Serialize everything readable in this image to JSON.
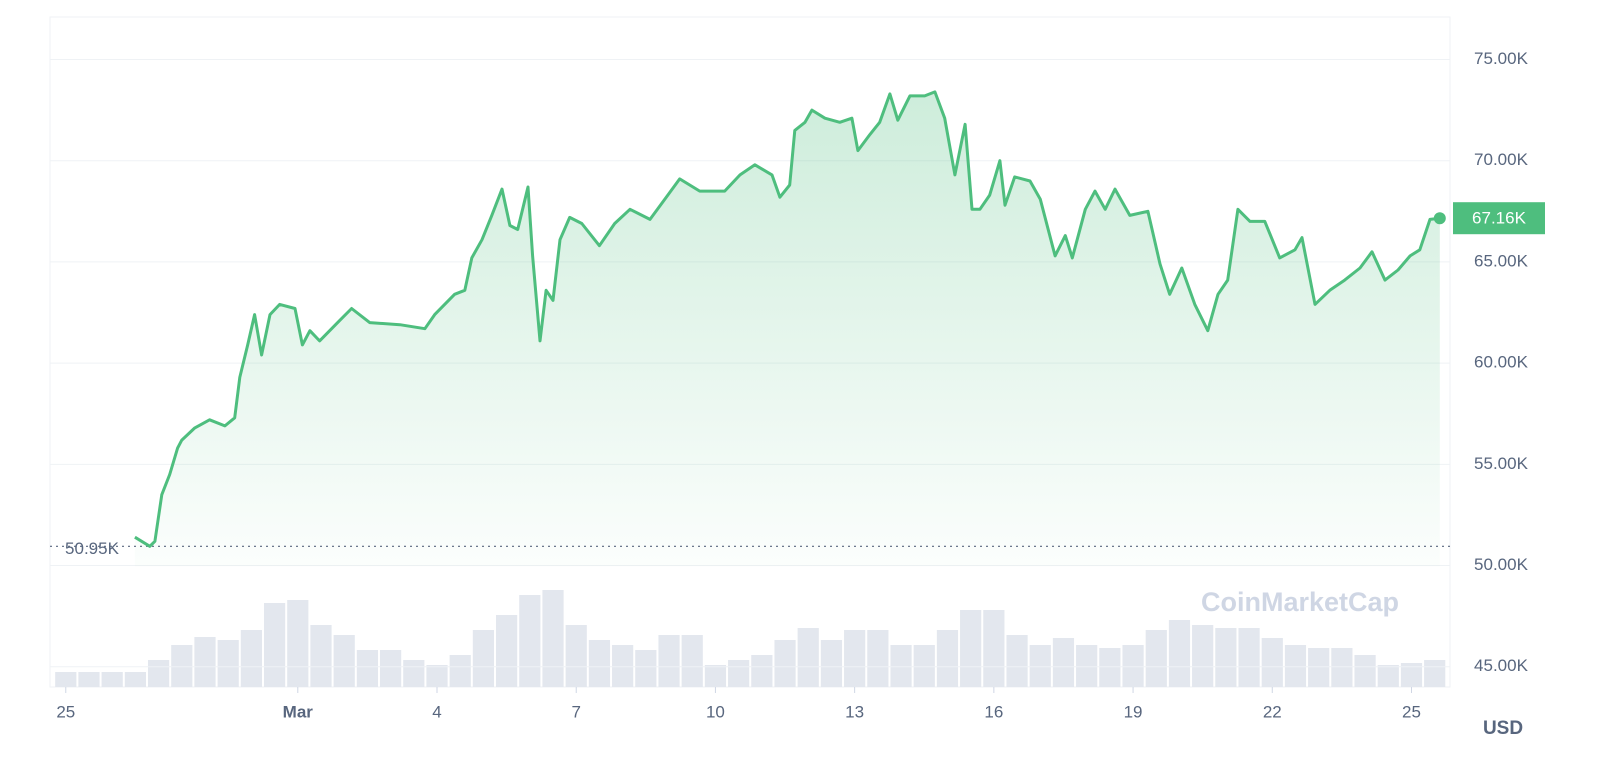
{
  "chart_data": {
    "type": "line",
    "color": "#4ebe7e",
    "xlim": [
      -0.34,
      29.83
    ],
    "xticks": [
      {
        "value": 0,
        "label": "25"
      },
      {
        "value": 5,
        "label": "Mar"
      },
      {
        "value": 8,
        "label": "4"
      },
      {
        "value": 11,
        "label": "7"
      },
      {
        "value": 14,
        "label": "10"
      },
      {
        "value": 17,
        "label": "13"
      },
      {
        "value": 20,
        "label": "16"
      },
      {
        "value": 23,
        "label": "19"
      },
      {
        "value": 26,
        "label": "22"
      },
      {
        "value": 29,
        "label": "25"
      }
    ],
    "ylim": [
      44,
      77.1
    ],
    "yticks": [
      {
        "value": 45,
        "label": "45.00K"
      },
      {
        "value": 50,
        "label": "50.00K"
      },
      {
        "value": 55,
        "label": "55.00K"
      },
      {
        "value": 60,
        "label": "60.00K"
      },
      {
        "value": 65,
        "label": "65.00K"
      },
      {
        "value": 70,
        "label": "70.00K"
      },
      {
        "value": 75,
        "label": "75.00K"
      }
    ],
    "y_unit": "USD",
    "grid": true,
    "watermark": "CoinMarketCap",
    "current_price": {
      "value": 67.16,
      "label": "67.16K"
    },
    "min_price": {
      "value": 50.95,
      "label": "50.95K"
    },
    "x": [
      1.49,
      1.81,
      1.92,
      2.07,
      2.24,
      2.41,
      2.5,
      2.78,
      3.1,
      3.43,
      3.64,
      3.75,
      3.92,
      4.07,
      4.22,
      4.4,
      4.61,
      4.94,
      5.1,
      5.26,
      5.47,
      5.9,
      6.16,
      6.55,
      7.2,
      7.74,
      7.95,
      8.38,
      8.6,
      8.75,
      8.97,
      9.18,
      9.4,
      9.57,
      9.74,
      9.96,
      10.06,
      10.22,
      10.35,
      10.5,
      10.65,
      10.86,
      11.12,
      11.5,
      11.83,
      12.16,
      12.59,
      12.91,
      13.23,
      13.66,
      14.2,
      14.53,
      14.85,
      15.22,
      15.39,
      15.6,
      15.71,
      15.93,
      16.08,
      16.36,
      16.68,
      16.94,
      17.07,
      17.33,
      17.54,
      17.76,
      17.93,
      18.19,
      18.51,
      18.73,
      18.94,
      19.16,
      19.38,
      19.53,
      19.7,
      19.91,
      20.13,
      20.24,
      20.45,
      20.78,
      21.0,
      21.32,
      21.54,
      21.69,
      21.97,
      22.18,
      22.4,
      22.61,
      22.93,
      23.32,
      23.58,
      23.79,
      24.05,
      24.33,
      24.61,
      24.83,
      25.04,
      25.26,
      25.52,
      25.84,
      26.16,
      26.49,
      26.64,
      26.92,
      27.24,
      27.56,
      27.89,
      28.15,
      28.43,
      28.71,
      28.97,
      29.18,
      29.4,
      29.61
    ],
    "values": [
      51.4,
      50.95,
      51.2,
      53.5,
      54.5,
      55.8,
      56.2,
      56.8,
      57.2,
      56.9,
      57.3,
      59.3,
      60.9,
      62.4,
      60.4,
      62.4,
      62.9,
      62.7,
      60.9,
      61.6,
      61.1,
      62.1,
      62.7,
      62.0,
      61.9,
      61.7,
      62.4,
      63.4,
      63.6,
      65.2,
      66.1,
      67.3,
      68.6,
      66.8,
      66.6,
      68.7,
      65.3,
      61.1,
      63.6,
      63.1,
      66.1,
      67.2,
      66.9,
      65.8,
      66.9,
      67.6,
      67.1,
      68.1,
      69.1,
      68.5,
      68.5,
      69.3,
      69.8,
      69.3,
      68.2,
      68.8,
      71.5,
      71.9,
      72.5,
      72.1,
      71.9,
      72.1,
      70.5,
      71.3,
      71.9,
      73.3,
      72.0,
      73.2,
      73.2,
      73.4,
      72.1,
      69.3,
      71.8,
      67.6,
      67.6,
      68.3,
      70.0,
      67.8,
      69.2,
      69.0,
      68.1,
      65.3,
      66.3,
      65.2,
      67.6,
      68.5,
      67.6,
      68.6,
      67.3,
      67.5,
      64.9,
      63.4,
      64.7,
      62.9,
      61.6,
      63.4,
      64.1,
      67.6,
      67.0,
      67.0,
      65.2,
      65.6,
      66.2,
      62.9,
      63.6,
      64.1,
      64.7,
      65.5,
      64.1,
      64.6,
      65.3,
      65.6,
      67.1,
      67.16
    ],
    "volume": {
      "ylim": [
        0,
        100
      ],
      "x": [
        0,
        0.5,
        1,
        1.5,
        2,
        2.5,
        3,
        3.5,
        4,
        4.5,
        5,
        5.5,
        6,
        6.5,
        7,
        7.5,
        8,
        8.5,
        9,
        9.5,
        10,
        10.5,
        11,
        11.5,
        12,
        12.5,
        13,
        13.5,
        14,
        14.5,
        15,
        15.5,
        16,
        16.5,
        17,
        17.5,
        18,
        18.5,
        19,
        19.5,
        20,
        20.5,
        21,
        21.5,
        22,
        22.5,
        23,
        23.5,
        24,
        24.5,
        25,
        25.5,
        26,
        26.5,
        27,
        27.5,
        28,
        28.5,
        29,
        29.5
      ],
      "values": [
        15,
        15,
        15,
        15,
        27,
        42,
        50,
        47,
        57,
        84,
        87,
        62,
        52,
        37,
        37,
        27,
        22,
        32,
        57,
        72,
        92,
        97,
        62,
        47,
        42,
        37,
        52,
        52,
        22,
        27,
        32,
        47,
        59,
        47,
        57,
        57,
        42,
        42,
        57,
        77,
        77,
        52,
        42,
        49,
        42,
        39,
        42,
        57,
        67,
        62,
        59,
        59,
        49,
        42,
        39,
        39,
        32,
        22,
        24,
        27
      ]
    }
  }
}
